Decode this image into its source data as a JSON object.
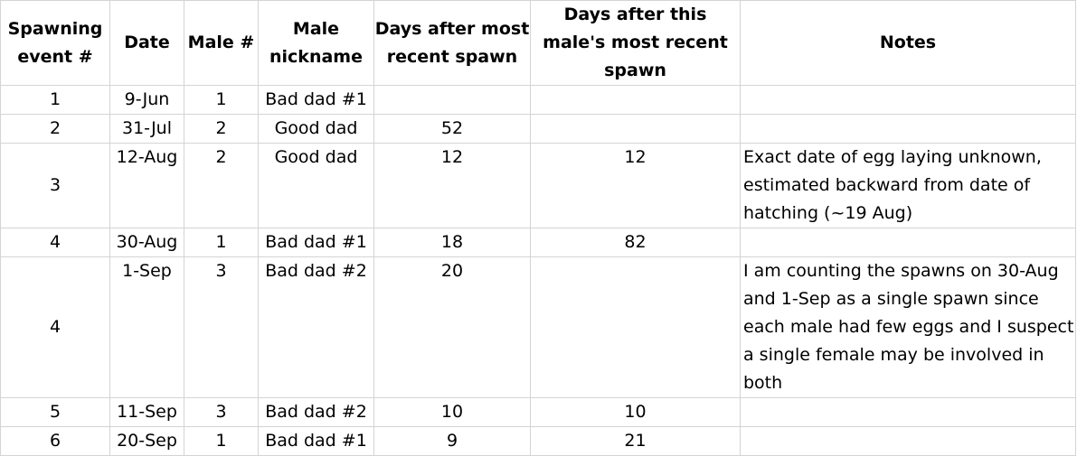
{
  "headers": {
    "spawning_event": "Spawning event #",
    "date": "Date",
    "male_num": "Male #",
    "male_nickname": "Male nickname",
    "days_after_recent": "Days after most recent spawn",
    "days_after_male": "Days after this male's most recent spawn",
    "notes": "Notes"
  },
  "rows": [
    {
      "event": "1",
      "date": "9-Jun",
      "male": "1",
      "nickname": "Bad dad #1",
      "days_recent": "",
      "days_male": "",
      "notes": ""
    },
    {
      "event": "2",
      "date": "31-Jul",
      "male": "2",
      "nickname": "Good dad",
      "days_recent": "52",
      "days_male": "",
      "notes": ""
    },
    {
      "event": "3",
      "date": "12-Aug",
      "male": "2",
      "nickname": "Good dad",
      "days_recent": "12",
      "days_male": "12",
      "notes": "Exact date of egg laying unknown, estimated backward from date of hatching (~19 Aug)"
    },
    {
      "event": "4",
      "date": "30-Aug",
      "male": "1",
      "nickname": "Bad dad #1",
      "days_recent": "18",
      "days_male": "82",
      "notes": ""
    },
    {
      "event": "4",
      "date": "1-Sep",
      "male": "3",
      "nickname": "Bad dad #2",
      "days_recent": "20",
      "days_male": "",
      "notes": "I am counting the spawns on 30-Aug and 1-Sep as a single spawn since each male had few eggs and I suspect a single female may be involved in both"
    },
    {
      "event": "5",
      "date": "11-Sep",
      "male": "3",
      "nickname": "Bad dad #2",
      "days_recent": "10",
      "days_male": "10",
      "notes": ""
    },
    {
      "event": "6",
      "date": "20-Sep",
      "male": "1",
      "nickname": "Bad dad #1",
      "days_recent": "9",
      "days_male": "21",
      "notes": ""
    }
  ]
}
